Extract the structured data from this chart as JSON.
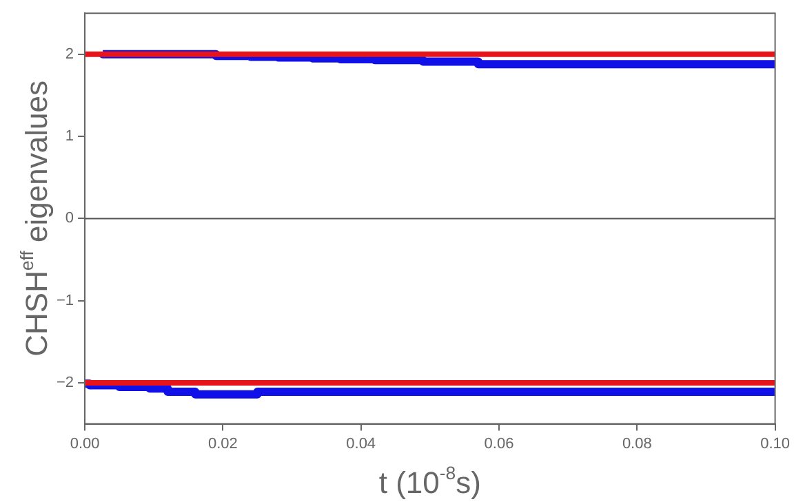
{
  "chart_data": {
    "type": "step",
    "xlabel": "t (10$^{-8}$s)",
    "ylabel": "CHSH$^{eff}$ eigenvalues",
    "xlim": [
      0,
      0.1
    ],
    "xticks": [
      {
        "value": 0,
        "label": "0.00"
      },
      {
        "value": 0.02,
        "label": "0.02"
      },
      {
        "value": 0.04,
        "label": "0.04"
      },
      {
        "value": 0.06,
        "label": "0.06"
      },
      {
        "value": 0.08,
        "label": "0.08"
      },
      {
        "value": 0.1,
        "label": "0.10"
      }
    ],
    "ylim": [
      -2.5,
      2.5
    ],
    "yticks": [
      -2,
      -1,
      0,
      1,
      2
    ],
    "grid": false,
    "legend": false,
    "ref_lines": [
      {
        "axis": "y",
        "value": 0,
        "color": "#555555"
      }
    ],
    "series": [
      {
        "color": "#1010e8",
        "x": [
          0.0026,
          0.019,
          0.024,
          0.028,
          0.033,
          0.037,
          0.042,
          0.049,
          0.057,
          0.071,
          0.1
        ],
        "values": [
          2.03,
          2.0,
          1.98,
          1.97,
          1.96,
          1.95,
          1.94,
          1.93,
          1.91,
          1.88,
          1.88
        ]
      },
      {
        "color": "#1010e8",
        "x": [
          0,
          0.0007,
          0.005,
          0.0094,
          0.012,
          0.016,
          0.025,
          0.035,
          0.1
        ],
        "values": [
          -2,
          -2.01,
          -2.03,
          -2.05,
          -2.07,
          -2.11,
          -2.14,
          -2.11,
          -2.11
        ]
      },
      {
        "type": "line",
        "color": "#e8141c",
        "x": [
          0,
          0.1
        ],
        "values": [
          2,
          2
        ]
      },
      {
        "type": "line",
        "color": "#e8141c",
        "x": [
          0,
          0.1
        ],
        "values": [
          -2,
          -2
        ]
      }
    ]
  }
}
